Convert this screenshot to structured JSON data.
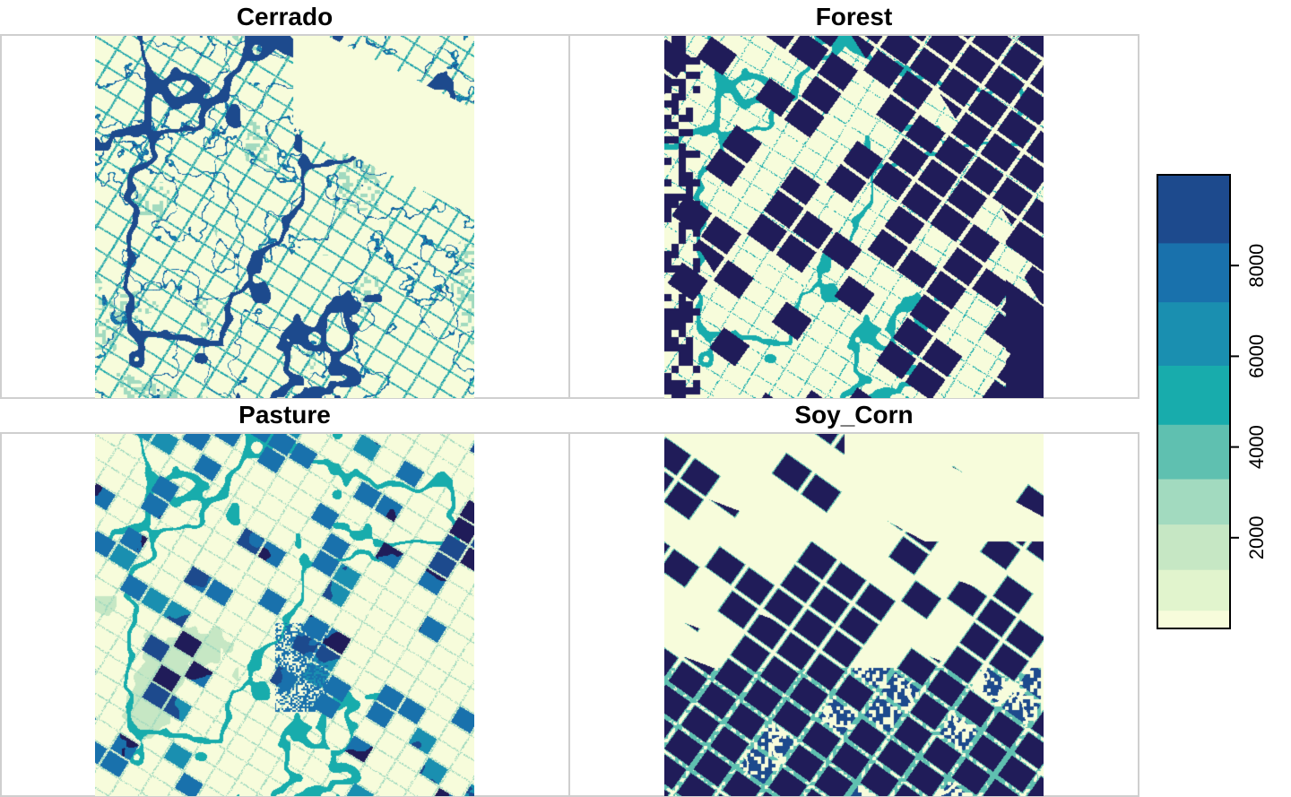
{
  "panels": [
    {
      "title": "Cerrado"
    },
    {
      "title": "Forest"
    },
    {
      "title": "Pasture"
    },
    {
      "title": "Soy_Corn"
    }
  ],
  "legend": {
    "tick_labels": [
      "2000",
      "4000",
      "6000",
      "8000"
    ],
    "tick_values": [
      2000,
      4000,
      6000,
      8000
    ],
    "value_range": [
      0,
      10000
    ],
    "colors": [
      "#ffffd9",
      "#edf8b1",
      "#c7e9b4",
      "#7fcdbb",
      "#41b6c4",
      "#1d91c0",
      "#225ea8",
      "#253494",
      "#081d58"
    ],
    "class_breaks": [
      0,
      400,
      1300,
      2300,
      3300,
      4500,
      5800,
      7200,
      8500,
      10000
    ],
    "class_colors": [
      "#f7fcdb",
      "#e1f4cd",
      "#c6e7c4",
      "#a2dabf",
      "#5fc0b0",
      "#18acac",
      "#1a8fb0",
      "#1971ac",
      "#1d4a8d",
      "#201c59"
    ]
  }
}
